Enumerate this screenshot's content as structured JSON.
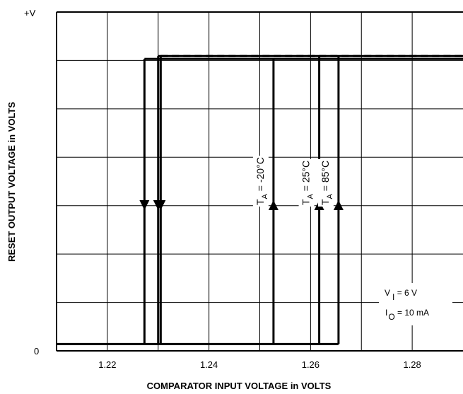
{
  "chart_data": {
    "type": "line",
    "title": "",
    "xlabel": "COMPARATOR INPUT VOLTAGE in VOLTS",
    "ylabel": "RESET OUTPUT VOLTAGE in VOLTS",
    "xlim": [
      1.21,
      1.29
    ],
    "ylim": [
      0,
      1
    ],
    "x_ticks": [
      {
        "value": 1.22,
        "label": "1.22"
      },
      {
        "value": 1.24,
        "label": "1.24"
      },
      {
        "value": 1.26,
        "label": "1.26"
      },
      {
        "value": 1.28,
        "label": "1.28"
      }
    ],
    "y_ticks": [
      {
        "value": 0,
        "label": "0"
      },
      {
        "value": 1,
        "label": "+V"
      }
    ],
    "grid": true,
    "low_level": 0.02,
    "high_level": 0.87,
    "series": [
      {
        "name": "TA = -20°C",
        "label_main": "T",
        "label_sub": "A",
        "label_rest": " = -20°C",
        "rising_x": 1.2527,
        "falling_x": 1.2273,
        "dash": "solid"
      },
      {
        "name": "TA = 25°C",
        "label_main": "T",
        "label_sub": "A",
        "label_rest": " = 25°C",
        "rising_x": 1.2617,
        "falling_x": 1.23,
        "dash": "solid"
      },
      {
        "name": "TA = 85°C",
        "label_main": "T",
        "label_sub": "A",
        "label_rest": " = 85°C",
        "rising_x": 1.2655,
        "falling_x": 1.2305,
        "dash": "dashed"
      }
    ],
    "conditions": {
      "vi_main": "V",
      "vi_sub": "I",
      "vi_rest": " = 6 V",
      "io_main": "I",
      "io_sub": "O",
      "io_rest": " = 10 mA"
    }
  }
}
